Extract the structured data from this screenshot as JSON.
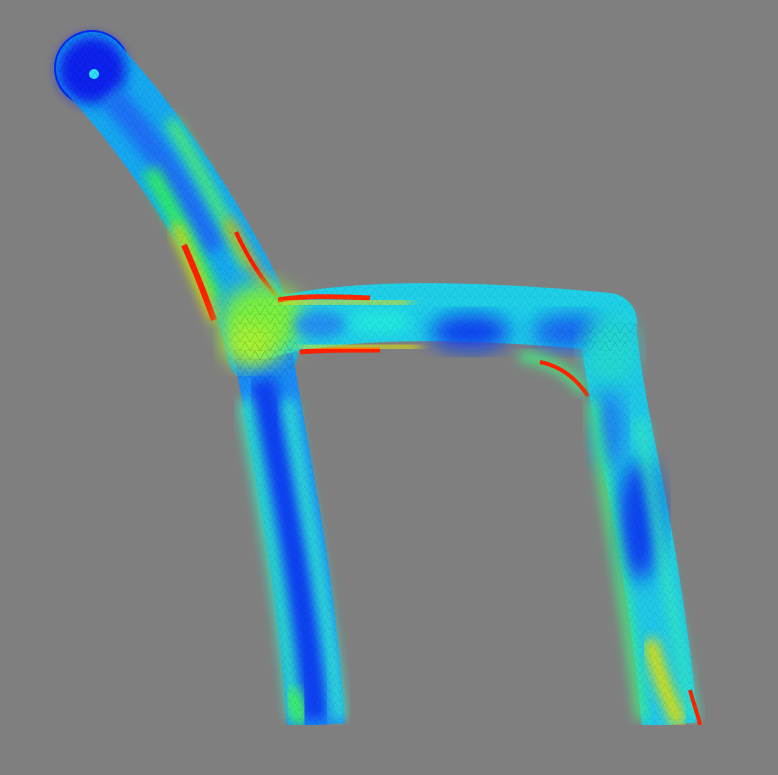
{
  "scene": {
    "background_color": "#7f7f7f",
    "colormap": [
      "#0000ff",
      "#0080ff",
      "#00ffff",
      "#00ff80",
      "#ffff00",
      "#ff8000",
      "#ff0000"
    ],
    "mesh": "triangulated",
    "object": "chair-frame-stress-field"
  }
}
